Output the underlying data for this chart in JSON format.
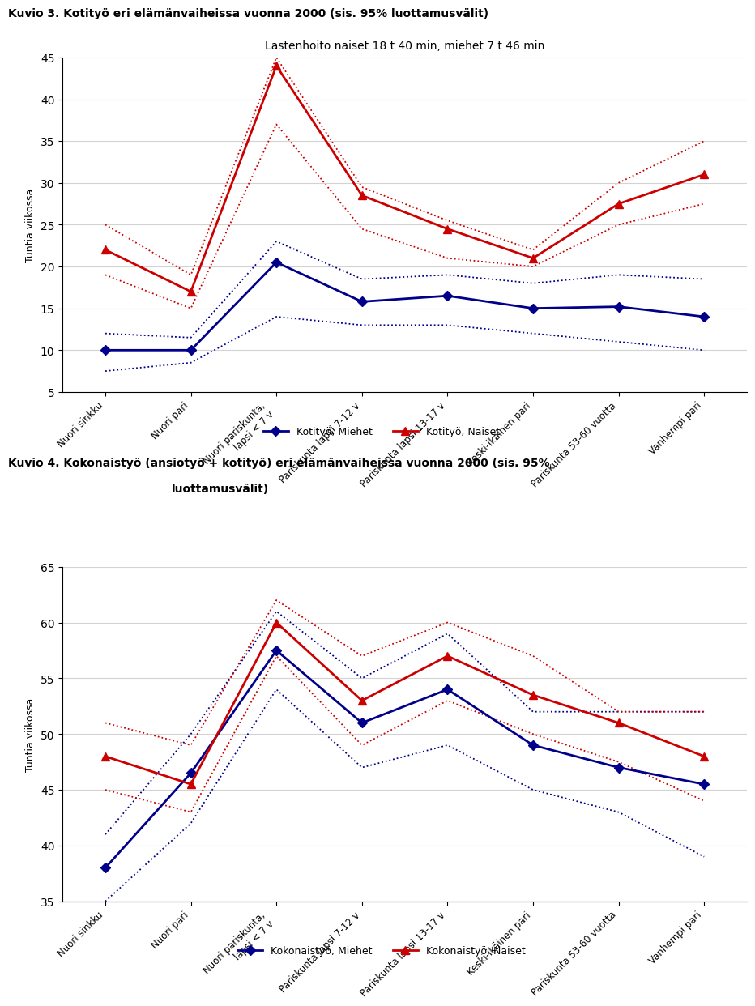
{
  "title1": "Kuvio 3. Kotityö eri elämänvaiheissa vuonna 2000 (sis. 95% luottamusvälit)",
  "subtitle1": "Lastenhoito naiset 18 t 40 min, miehet 7 t 46 min",
  "ylabel1": "Tuntia viikossa",
  "ylim1": [
    5,
    45
  ],
  "yticks1": [
    5,
    10,
    15,
    20,
    25,
    30,
    35,
    40,
    45
  ],
  "title2_line1": "Kuvio 4. Kokonaistyö (ansiotyö + kotityö) eri elämänvaiheissa vuonna 2000 (sis. 95%",
  "title2_line2": "luottamusvälit)",
  "ylabel2": "Tuntia viikossa",
  "ylim2": [
    35,
    65
  ],
  "yticks2": [
    35,
    40,
    45,
    50,
    55,
    60,
    65
  ],
  "categories": [
    "Nuori sinkku",
    "Nuori pari",
    "Nuori pariskunta,\nlapsi < 7 v",
    "Pariskunta lapsi 7-12 v",
    "Pariskunta lapsi 13-17 v",
    "Keski-ikäinen pari",
    "Pariskunta 53-60 vuotta",
    "Vanhempi pari"
  ],
  "miehet1": [
    10,
    10,
    20.5,
    15.8,
    16.5,
    15,
    15.2,
    14
  ],
  "naiset1": [
    22,
    17,
    44,
    28.5,
    24.5,
    21,
    27.5,
    31
  ],
  "miehet1_lo": [
    7.5,
    8.5,
    14,
    13,
    13,
    12,
    11,
    10
  ],
  "miehet1_hi": [
    12,
    11.5,
    23,
    18.5,
    19,
    18,
    19,
    18.5
  ],
  "naiset1_lo": [
    19,
    15,
    37,
    24.5,
    21,
    20,
    25,
    27.5
  ],
  "naiset1_hi": [
    25,
    19,
    45,
    29.5,
    25.5,
    22,
    30,
    35
  ],
  "miehet2": [
    38,
    46.5,
    57.5,
    51,
    54,
    49,
    47,
    45.5
  ],
  "naiset2": [
    48,
    45.5,
    60,
    53,
    57,
    53.5,
    51,
    48
  ],
  "miehet2_lo": [
    35,
    42,
    54,
    47,
    49,
    45,
    43,
    39
  ],
  "miehet2_hi": [
    41,
    50,
    61,
    55,
    59,
    52,
    52,
    52
  ],
  "naiset2_lo": [
    45,
    43,
    57,
    49,
    53,
    50,
    47.5,
    44
  ],
  "naiset2_hi": [
    51,
    49,
    62,
    57,
    60,
    57,
    52,
    52
  ],
  "color_miehet": "#00008B",
  "color_naiset": "#CC0000",
  "legend1_miehet": "Kotityö, Miehet",
  "legend1_naiset": "Kotityö, Naiset",
  "legend2_miehet": "Kokonaistyö, Miehet",
  "legend2_naiset": "Kokonaistyö, Naiset"
}
